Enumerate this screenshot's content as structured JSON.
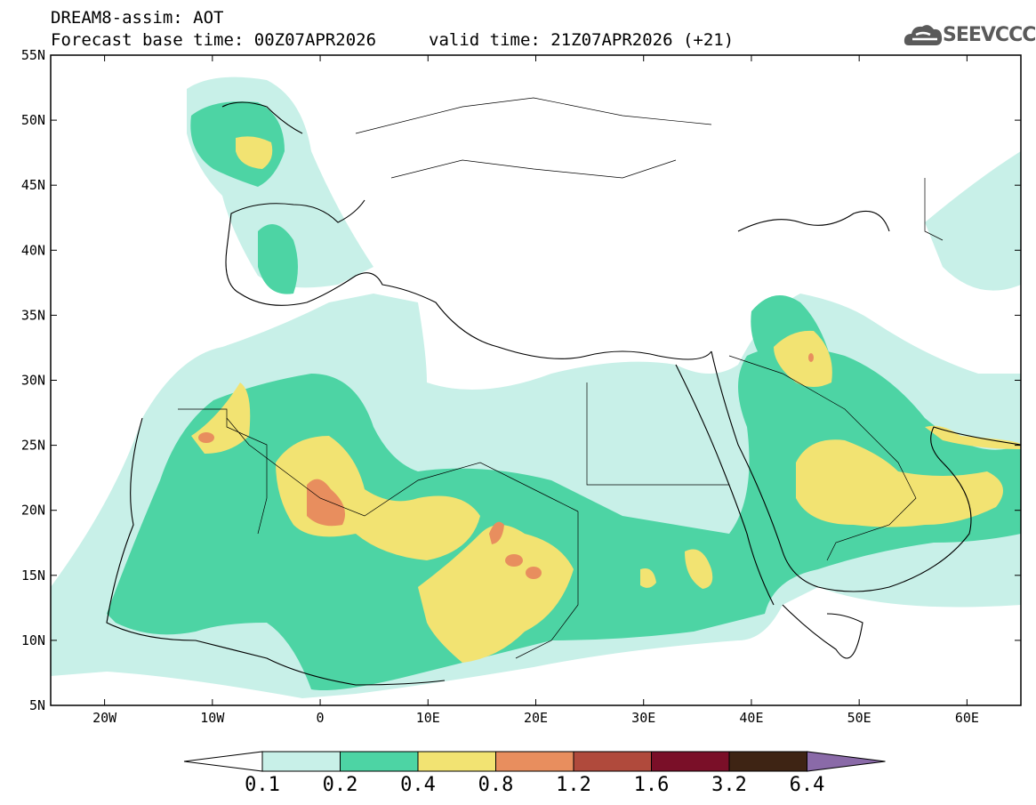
{
  "header": {
    "title": "DREAM8-assim: AOT",
    "forecast_base": "Forecast base time: 00Z07APR2026",
    "valid_time": "valid time: 21Z07APR2026 (+21)",
    "logo_text": "SEEVCCC",
    "logo_icon": "cloud-logo-icon"
  },
  "map": {
    "lon_range": [
      -25,
      65
    ],
    "lat_range": [
      5,
      55
    ],
    "lat_labels": [
      "55N",
      "50N",
      "45N",
      "40N",
      "35N",
      "30N",
      "25N",
      "20N",
      "15N",
      "10N",
      "5N"
    ],
    "lon_labels": [
      "20W",
      "10W",
      "0",
      "10E",
      "20E",
      "30E",
      "40E",
      "50E",
      "60E"
    ]
  },
  "colorbar": {
    "labels": [
      "0.1",
      "0.2",
      "0.4",
      "0.8",
      "1.2",
      "1.6",
      "3.2",
      "6.4"
    ],
    "colors": [
      "#c8f0e8",
      "#4dd4a4",
      "#f2e372",
      "#e88e5e",
      "#b04a3c",
      "#7a0f28",
      "#3e2414",
      "#8a6aa8"
    ],
    "under_color": "#ffffff"
  }
}
